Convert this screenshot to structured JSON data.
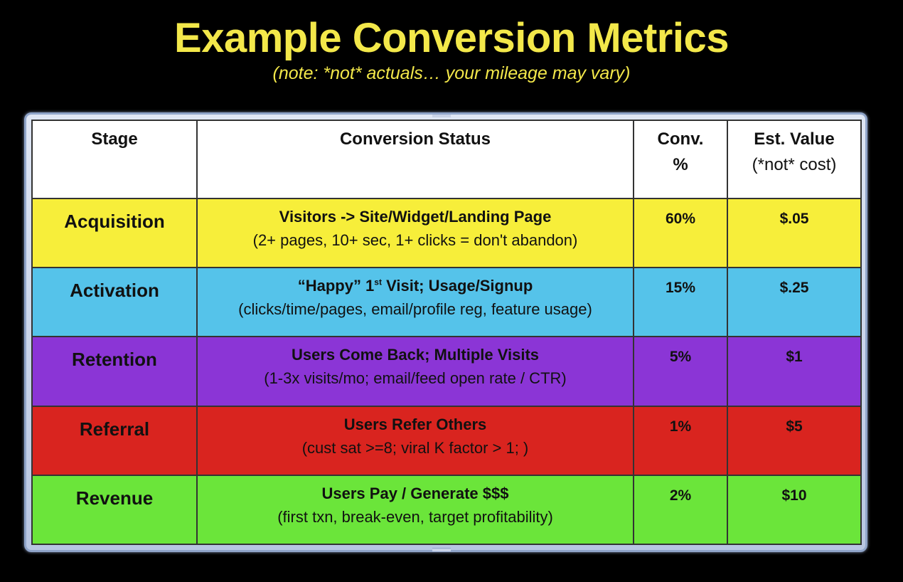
{
  "header": {
    "title": "Example Conversion Metrics",
    "subtitle": "(note: *not* actuals… your mileage may vary)"
  },
  "table": {
    "columns": [
      "Stage",
      "Conversion Status",
      "Conv. %",
      "Est. Value (*not* cost)"
    ],
    "column_lines": {
      "conv": [
        "Conv.",
        "%"
      ],
      "value": [
        "Est. Value",
        "(*not* cost)"
      ]
    },
    "rows": [
      {
        "stage": "Acquisition",
        "status_main": "Visitors -> Site/Widget/Landing Page",
        "status_sub": "(2+ pages, 10+ sec, 1+ clicks = don't abandon)",
        "conv": "60%",
        "value": "$.05",
        "color": "#f7ee3a"
      },
      {
        "stage": "Activation",
        "status_main_pre": "“Happy” 1",
        "status_main_sup": "st",
        "status_main_post": " Visit; Usage/Signup",
        "status_sub": "(clicks/time/pages, email/profile reg, feature usage)",
        "conv": "15%",
        "value": "$.25",
        "color": "#55c3ea"
      },
      {
        "stage": "Retention",
        "status_main": "Users Come Back; Multiple Visits",
        "status_sub": "(1-3x visits/mo; email/feed open rate / CTR)",
        "conv": "5%",
        "value": "$1",
        "color": "#8b35d6"
      },
      {
        "stage": "Referral",
        "status_main": "Users Refer Others",
        "status_sub": "(cust sat >=8; viral K factor > 1; )",
        "conv": "1%",
        "value": "$5",
        "color": "#d9241f"
      },
      {
        "stage": "Revenue",
        "status_main": "Users Pay / Generate $$$",
        "status_sub": "(first txn, break-even, target profitability)",
        "conv": "2%",
        "value": "$10",
        "color": "#6be53a"
      }
    ]
  }
}
